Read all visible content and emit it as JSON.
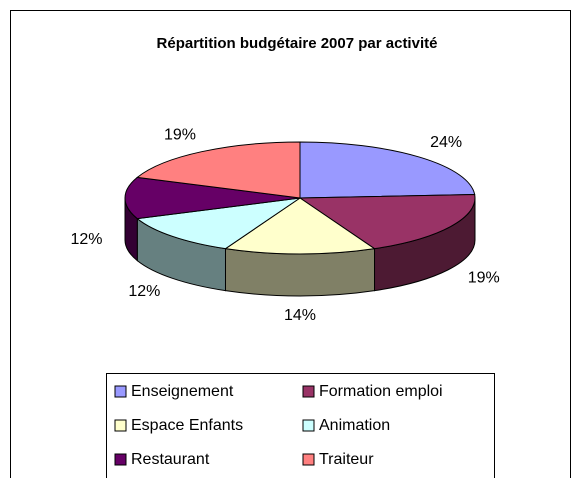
{
  "chart_data": {
    "type": "pie3d",
    "title": "Répartition budgétaire 2007 par activité",
    "categories": [
      "Enseignement",
      "Formation emploi",
      "Espace Enfants",
      "Animation",
      "Restaurant",
      "Traiteur"
    ],
    "values": [
      24,
      19,
      14,
      12,
      12,
      19
    ],
    "value_labels": [
      "24%",
      "19%",
      "14%",
      "12%",
      "12%",
      "19%"
    ],
    "colors": [
      "#9999ff",
      "#993366",
      "#ffffcc",
      "#ccffff",
      "#660066",
      "#ff8080"
    ],
    "legend": "bottom"
  }
}
